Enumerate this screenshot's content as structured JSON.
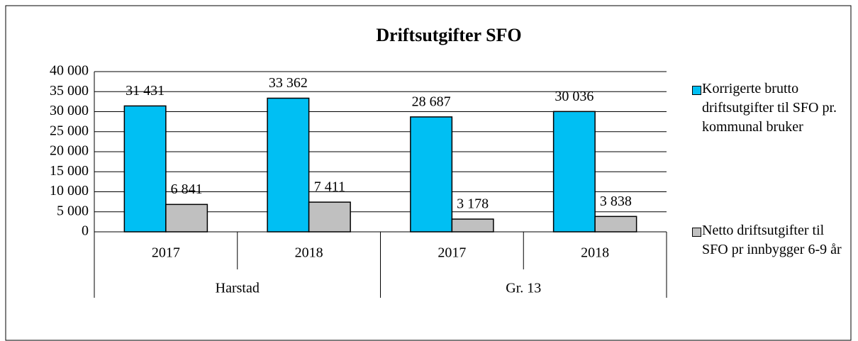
{
  "chart_data": {
    "type": "bar",
    "title": "Driftsutgifter SFO",
    "categories": [
      "2017",
      "2018",
      "2017",
      "2018"
    ],
    "groups": [
      "Harstad",
      "Gr. 13"
    ],
    "series": [
      {
        "name": "Korrigerte brutto driftsutgifter til SFO pr. kommunal bruker",
        "color": "#00bff3",
        "values": [
          31431,
          33362,
          28687,
          30036
        ],
        "value_labels": [
          "31 431",
          "33 362",
          "28 687",
          "30 036"
        ]
      },
      {
        "name": "Netto driftsutgifter til SFO pr innbygger 6-9 år",
        "color": "#c0c0c0",
        "values": [
          6841,
          7411,
          3178,
          3838
        ],
        "value_labels": [
          "6 841",
          "7 411",
          "3 178",
          "3 838"
        ]
      }
    ],
    "ylim": [
      0,
      40000
    ],
    "yticks": [
      0,
      {
        "value": 5000,
        "label": "5 000"
      },
      {
        "value": 10000,
        "label": "10 000"
      },
      {
        "value": 15000,
        "label": "15 000"
      },
      {
        "value": 20000,
        "label": "20 000"
      },
      {
        "value": 25000,
        "label": "25 000"
      },
      {
        "value": 30000,
        "label": "30 000"
      },
      {
        "value": 35000,
        "label": "35 000"
      },
      {
        "value": 40000,
        "label": "40 000"
      }
    ],
    "grid": true,
    "legend": "right"
  }
}
